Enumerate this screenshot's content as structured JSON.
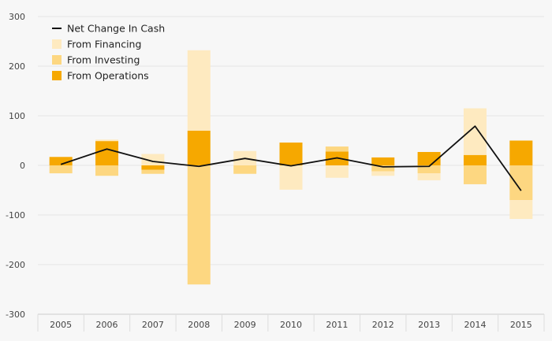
{
  "chart_data": {
    "type": "bar",
    "stacked": true,
    "categories": [
      "2005",
      "2006",
      "2007",
      "2008",
      "2009",
      "2010",
      "2011",
      "2012",
      "2013",
      "2014",
      "2015"
    ],
    "ylim": [
      -300,
      300
    ],
    "yticks": [
      -300,
      -200,
      -100,
      0,
      100,
      200,
      300
    ],
    "ytick_labels": [
      "-300",
      "-200",
      "-100",
      "0",
      "100",
      "200",
      "300"
    ],
    "grid": true,
    "legend_position": "top-left",
    "series": [
      {
        "name": "From Operations",
        "color": "#f6a800",
        "values": [
          17,
          49,
          -9,
          70,
          0,
          46,
          28,
          16,
          27,
          21,
          50
        ]
      },
      {
        "name": "From Investing",
        "color": "#fdd781",
        "values": [
          -16,
          -21,
          -8,
          -240,
          -17,
          0,
          10,
          -12,
          -16,
          -38,
          -70
        ]
      },
      {
        "name": "From Financing",
        "color": "#feeac0",
        "values": [
          0,
          3,
          23,
          162,
          29,
          -49,
          -25,
          -9,
          -14,
          94,
          -38
        ]
      }
    ],
    "line_series": {
      "name": "Net Change In Cash",
      "color": "#111111",
      "values": [
        2,
        33,
        8,
        -2,
        14,
        -1,
        15,
        -3,
        -2,
        79,
        -51
      ]
    },
    "legend": [
      {
        "label": "Net Change In Cash",
        "kind": "line",
        "color": "#111111"
      },
      {
        "label": "From Financing",
        "kind": "swatch",
        "color": "#feeac0"
      },
      {
        "label": "From Investing",
        "kind": "swatch",
        "color": "#fdd781"
      },
      {
        "label": "From Operations",
        "kind": "swatch",
        "color": "#f6a800"
      }
    ]
  }
}
